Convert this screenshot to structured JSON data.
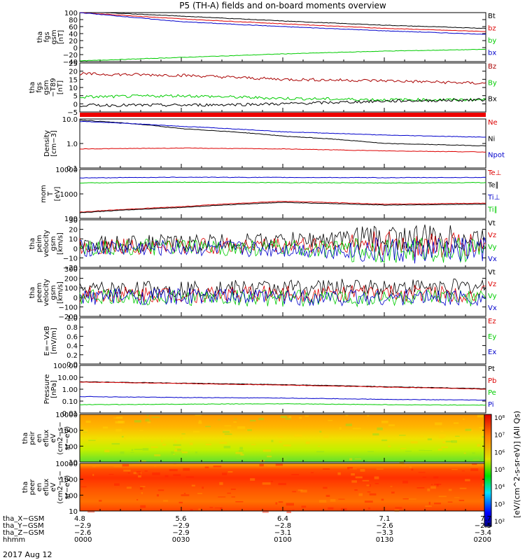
{
  "title": "P5 (TH-A) fields and on-board moments overview",
  "colors": {
    "black": "#000000",
    "red": "#dd0000",
    "green": "#00dd00",
    "blue": "#0000cc",
    "darkred": "#aa0000"
  },
  "panels": [
    {
      "id": "fgs",
      "ylabel": [
        "tha",
        "fgs",
        "gsm",
        "[nT]"
      ],
      "ticks": [
        "100",
        "80",
        "60",
        "40",
        "20",
        "0",
        "−20",
        "−40"
      ],
      "legend": [
        {
          "text": "Bt",
          "color": "#000000"
        },
        {
          "text": "bz",
          "color": "#dd0000"
        },
        {
          "text": "by",
          "color": "#00cc00"
        },
        {
          "text": "bx",
          "color": "#0000cc"
        }
      ]
    },
    {
      "id": "fgs-dsl",
      "ylabel": [
        "tha",
        "fgs",
        "gsm",
        "−T89",
        "[nT]"
      ],
      "ticks": [
        "25",
        "20",
        "15",
        "10",
        "5",
        "0",
        "−5"
      ],
      "legend": [
        {
          "text": "Bz",
          "color": "#aa0000"
        },
        {
          "text": "By",
          "color": "#00cc00"
        },
        {
          "text": "Bx",
          "color": "#000000"
        }
      ]
    },
    {
      "id": "density",
      "ylabel": [
        "Density",
        "[cm−3]"
      ],
      "ticks": [
        "10.0",
        "1.0",
        "0.1"
      ],
      "legend": [
        {
          "text": "Ne",
          "color": "#dd0000"
        },
        {
          "text": "Ni",
          "color": "#000000"
        },
        {
          "text": "Npot",
          "color": "#0000cc"
        }
      ]
    },
    {
      "id": "temp",
      "ylabel": [
        "mom",
        "T",
        "[eV]"
      ],
      "ticks": [
        "10000",
        "1000",
        "100"
      ],
      "legend": [
        {
          "text": "Te⊥",
          "color": "#dd0000"
        },
        {
          "text": "Te∥",
          "color": "#000000"
        },
        {
          "text": "Ti⊥",
          "color": "#0000cc"
        },
        {
          "text": "Ti∥",
          "color": "#00cc00"
        }
      ]
    },
    {
      "id": "peim",
      "ylabel": [
        "tha",
        "peim",
        "velocity",
        "gsm",
        "[km/s]"
      ],
      "ticks": [
        "30",
        "20",
        "10",
        "0",
        "−10",
        "−20"
      ],
      "legend": [
        {
          "text": "Vt",
          "color": "#000000"
        },
        {
          "text": "Vz",
          "color": "#dd0000"
        },
        {
          "text": "Vy",
          "color": "#00cc00"
        },
        {
          "text": "Vx",
          "color": "#0000cc"
        }
      ]
    },
    {
      "id": "peem",
      "ylabel": [
        "tha",
        "peem",
        "velocity",
        "gsm",
        "[km/s]"
      ],
      "ticks": [
        "300",
        "200",
        "100",
        "0",
        "−100",
        "−200"
      ],
      "legend": [
        {
          "text": "Vt",
          "color": "#000000"
        },
        {
          "text": "Vz",
          "color": "#dd0000"
        },
        {
          "text": "Vy",
          "color": "#00cc00"
        },
        {
          "text": "Vx",
          "color": "#0000cc"
        }
      ]
    },
    {
      "id": "efield",
      "ylabel": [
        "E=−VxB",
        "[mV/m]"
      ],
      "ticks": [
        "1.0",
        "0.8",
        "0.6",
        "0.4",
        "0.2",
        "0.0"
      ],
      "legend": [
        {
          "text": "Ez",
          "color": "#dd0000"
        },
        {
          "text": "Ey",
          "color": "#00cc00"
        },
        {
          "text": "Ex",
          "color": "#0000cc"
        }
      ]
    },
    {
      "id": "pressure",
      "ylabel": [
        "Pressure",
        "[nPa]"
      ],
      "ticks": [
        "100.00",
        "10.00",
        "1.00",
        "0.10",
        "0.01"
      ],
      "legend": [
        {
          "text": "Pt",
          "color": "#000000"
        },
        {
          "text": "Pb",
          "color": "#dd0000"
        },
        {
          "text": "Pe",
          "color": "#00cc00"
        },
        {
          "text": "Pi",
          "color": "#0000cc"
        }
      ]
    },
    {
      "id": "peir",
      "ylabel": [
        "tha",
        "peir",
        "en",
        "eflux",
        "eV",
        "(cm2−s−",
        "sr−eV)"
      ],
      "ticks": [
        "10000",
        "1000",
        "100",
        "10"
      ],
      "legend": []
    },
    {
      "id": "peer",
      "ylabel": [
        "tha",
        "peer",
        "en",
        "eflux",
        "eV",
        "(cm2−s−",
        "sr−eV)"
      ],
      "ticks": [
        "10000",
        "1000",
        "100",
        "10"
      ],
      "legend": []
    }
  ],
  "colorbar": {
    "ticks": [
      "10⁸",
      "10⁷",
      "10⁶",
      "10⁵",
      "10⁴",
      "10³",
      "10²"
    ],
    "label": "[eV/(cm^2-s-sr-eV)] (All Qs)"
  },
  "xaxis": {
    "rows": [
      {
        "label": "tha_X−GSM",
        "values": [
          "4.8",
          "5.6",
          "6.4",
          "7.1",
          "7.7"
        ]
      },
      {
        "label": "tha_Y−GSM",
        "values": [
          "−2.9",
          "−2.9",
          "−2.8",
          "−2.6",
          "−2.5"
        ]
      },
      {
        "label": "tha_Z−GSM",
        "values": [
          "−2.6",
          "−2.9",
          "−3.1",
          "−3.3",
          "−3.4"
        ]
      },
      {
        "label": "hhmm",
        "values": [
          "0000",
          "0030",
          "0100",
          "0130",
          "0200"
        ]
      }
    ],
    "date": "2017 Aug 12"
  },
  "chart_data": [
    {
      "type": "line",
      "panel": "fgs",
      "x_range_hhmm": [
        "0000",
        "0200"
      ],
      "ylim": [
        -40,
        100
      ],
      "series": [
        {
          "name": "Bt",
          "x": [
            0,
            30,
            60,
            90,
            120
          ],
          "y": [
            103,
            90,
            76,
            64,
            55
          ]
        },
        {
          "name": "bz",
          "x": [
            0,
            30,
            60,
            90,
            120
          ],
          "y": [
            100,
            82,
            68,
            55,
            46
          ]
        },
        {
          "name": "by",
          "x": [
            0,
            30,
            60,
            90,
            120
          ],
          "y": [
            -38,
            -28,
            -18,
            -10,
            -5
          ]
        },
        {
          "name": "bx",
          "x": [
            0,
            30,
            60,
            90,
            120
          ],
          "y": [
            100,
            74,
            60,
            48,
            38
          ]
        }
      ]
    },
    {
      "type": "line",
      "panel": "fgs-dsl",
      "ylim": [
        -8,
        28
      ],
      "series": [
        {
          "name": "Bz",
          "x": [
            0,
            30,
            60,
            90,
            120
          ],
          "y": [
            20,
            19,
            16,
            15,
            13
          ]
        },
        {
          "name": "By",
          "x": [
            0,
            30,
            60,
            90,
            120
          ],
          "y": [
            3,
            4,
            2,
            1,
            1
          ]
        },
        {
          "name": "Bx",
          "x": [
            0,
            30,
            60,
            90,
            120
          ],
          "y": [
            -3,
            -3,
            -2,
            0,
            1
          ]
        }
      ]
    },
    {
      "type": "line",
      "panel": "density",
      "yscale": "log",
      "ylim": [
        0.1,
        10
      ],
      "series": [
        {
          "name": "Ne",
          "x": [
            0,
            30,
            60,
            90,
            120
          ],
          "y": [
            0.6,
            0.65,
            0.6,
            0.5,
            0.45
          ]
        },
        {
          "name": "Ni",
          "x": [
            0,
            30,
            60,
            90,
            120
          ],
          "y": [
            9,
            4,
            2,
            1,
            0.8
          ]
        },
        {
          "name": "Npot",
          "x": [
            0,
            30,
            60,
            90,
            120
          ],
          "y": [
            8,
            5,
            3,
            2.2,
            1.8
          ]
        }
      ]
    },
    {
      "type": "line",
      "panel": "temp",
      "yscale": "log",
      "ylim": [
        100,
        10000
      ],
      "series": [
        {
          "name": "Te⊥",
          "x": [
            0,
            30,
            60,
            90,
            120
          ],
          "y": [
            180,
            300,
            500,
            380,
            420
          ]
        },
        {
          "name": "Te∥",
          "x": [
            0,
            30,
            60,
            90,
            120
          ],
          "y": [
            170,
            280,
            450,
            350,
            380
          ]
        },
        {
          "name": "Ti⊥",
          "x": [
            0,
            30,
            60,
            90,
            120
          ],
          "y": [
            4500,
            4800,
            4700,
            4600,
            4700
          ]
        },
        {
          "name": "Ti∥",
          "x": [
            0,
            30,
            60,
            90,
            120
          ],
          "y": [
            2800,
            3000,
            2900,
            2800,
            2900
          ]
        }
      ]
    },
    {
      "type": "line",
      "panel": "peim",
      "ylim": [
        -20,
        30
      ],
      "series": [
        {
          "name": "Vt",
          "x": [
            0,
            30,
            60,
            90,
            120
          ],
          "y": [
            5,
            6,
            8,
            12,
            10
          ]
        },
        {
          "name": "Vz",
          "x": [
            0,
            30,
            60,
            90,
            120
          ],
          "y": [
            2,
            2,
            3,
            4,
            3
          ]
        },
        {
          "name": "Vy",
          "x": [
            0,
            30,
            60,
            90,
            120
          ],
          "y": [
            1,
            1,
            0,
            -2,
            -1
          ]
        },
        {
          "name": "Vx",
          "x": [
            0,
            30,
            60,
            90,
            120
          ],
          "y": [
            0,
            0,
            -1,
            -3,
            -2
          ]
        }
      ]
    },
    {
      "type": "line",
      "panel": "peem",
      "ylim": [
        -200,
        300
      ],
      "series": [
        {
          "name": "Vt",
          "x": [
            0,
            30,
            60,
            90,
            120
          ],
          "y": [
            80,
            90,
            100,
            110,
            110
          ]
        },
        {
          "name": "Vz",
          "x": [
            0,
            30,
            60,
            90,
            120
          ],
          "y": [
            30,
            30,
            40,
            40,
            40
          ]
        },
        {
          "name": "Vy",
          "x": [
            0,
            30,
            60,
            90,
            120
          ],
          "y": [
            0,
            0,
            -10,
            -10,
            -10
          ]
        },
        {
          "name": "Vx",
          "x": [
            0,
            30,
            60,
            90,
            120
          ],
          "y": [
            10,
            10,
            0,
            0,
            0
          ]
        }
      ]
    },
    {
      "type": "line",
      "panel": "efield",
      "ylim": [
        0,
        1
      ],
      "series": []
    },
    {
      "type": "line",
      "panel": "pressure",
      "yscale": "log",
      "ylim": [
        0.01,
        100
      ],
      "series": [
        {
          "name": "Pt",
          "x": [
            0,
            30,
            60,
            90,
            120
          ],
          "y": [
            4.2,
            3.2,
            2.4,
            1.6,
            1.1
          ]
        },
        {
          "name": "Pb",
          "x": [
            0,
            30,
            60,
            90,
            120
          ],
          "y": [
            4.0,
            3.0,
            2.2,
            1.5,
            1.0
          ]
        },
        {
          "name": "Pe",
          "x": [
            0,
            30,
            60,
            90,
            120
          ],
          "y": [
            0.05,
            0.055,
            0.06,
            0.05,
            0.045
          ]
        },
        {
          "name": "Pi",
          "x": [
            0,
            30,
            60,
            90,
            120
          ],
          "y": [
            0.24,
            0.2,
            0.18,
            0.14,
            0.12
          ]
        }
      ]
    },
    {
      "type": "heatmap",
      "panel": "peir",
      "yscale": "log",
      "ylim": [
        5,
        20000
      ],
      "zlim": [
        100,
        100000000
      ]
    },
    {
      "type": "heatmap",
      "panel": "peer",
      "yscale": "log",
      "ylim": [
        5,
        20000
      ],
      "zlim": [
        100,
        100000000
      ]
    }
  ]
}
